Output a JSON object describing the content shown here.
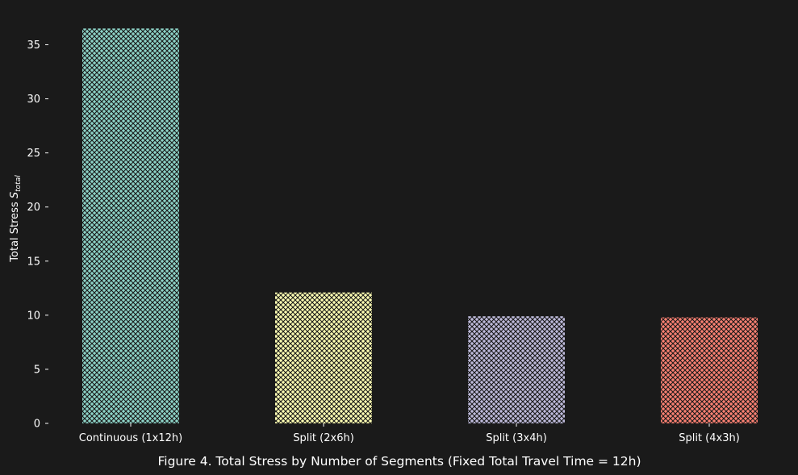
{
  "chart_data": {
    "type": "bar",
    "categories": [
      "Continuous (1x12h)",
      "Split (2x6h)",
      "Split (3x4h)",
      "Split (4x3h)"
    ],
    "values": [
      36.5,
      12.1,
      9.9,
      9.8
    ],
    "ylabel_main": "Total Stress ",
    "ylabel_symbol": "S",
    "ylabel_subscript": "total",
    "xlabel": "",
    "ylim": [
      0,
      36.6
    ],
    "yticks": [
      0,
      5,
      10,
      15,
      20,
      25,
      30,
      35
    ],
    "grid": false,
    "caption": "Figure 4. Total Stress by Number of Segments (Fixed Total Travel Time = 12h)",
    "colors": [
      "#8dd3c7",
      "#ffffb3",
      "#bebada",
      "#fb8072"
    ],
    "hatch": "crosshatch",
    "hatch_color": "#1a1a1a",
    "background": "#1a1a1a",
    "text_color": "#ffffff"
  }
}
